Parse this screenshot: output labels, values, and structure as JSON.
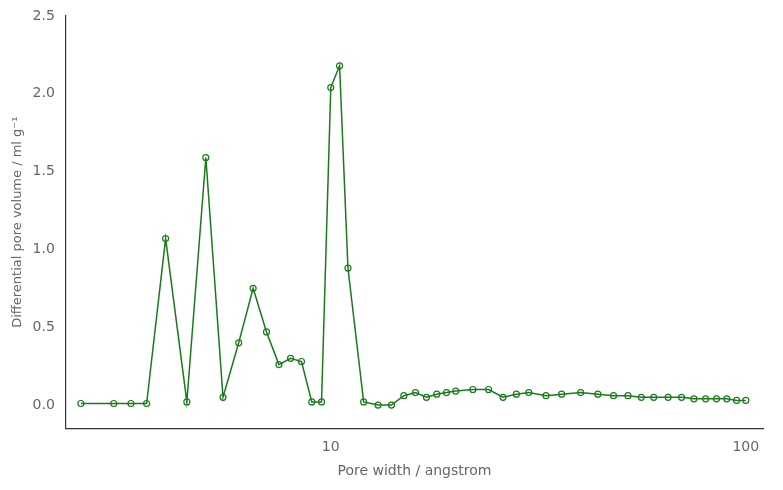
{
  "chart_data": {
    "type": "line",
    "x": [
      2.5,
      3.0,
      3.3,
      3.6,
      4.0,
      4.5,
      5.0,
      5.5,
      6.0,
      6.5,
      7.0,
      7.5,
      8.0,
      8.5,
      9.0,
      9.5,
      10.0,
      10.5,
      11.0,
      12.0,
      13.0,
      14.0,
      15.0,
      16.0,
      17.0,
      18.0,
      19.0,
      20.0,
      22.0,
      24.0,
      26.0,
      28.0,
      30.0,
      33.0,
      36.0,
      40.0,
      44.0,
      48.0,
      52.0,
      56.0,
      60.0,
      65.0,
      70.0,
      75.0,
      80.0,
      85.0,
      90.0,
      95.0,
      100.0
    ],
    "values": [
      0.01,
      0.01,
      0.01,
      0.01,
      1.07,
      0.02,
      1.59,
      0.05,
      0.4,
      0.75,
      0.47,
      0.26,
      0.3,
      0.28,
      0.02,
      0.02,
      2.04,
      2.18,
      0.88,
      0.02,
      0.0,
      0.0,
      0.06,
      0.08,
      0.05,
      0.07,
      0.08,
      0.09,
      0.1,
      0.1,
      0.05,
      0.07,
      0.08,
      0.06,
      0.07,
      0.08,
      0.07,
      0.06,
      0.06,
      0.05,
      0.05,
      0.05,
      0.05,
      0.04,
      0.04,
      0.04,
      0.04,
      0.03,
      0.03
    ],
    "color": "#1a7a1a",
    "marker": "circle",
    "xlabel": "Pore width / angstrom",
    "ylabel": "Differential pore volume / ml g⁻¹",
    "log": "x",
    "xlim": [
      2.3,
      110
    ],
    "xticks": [
      10,
      100
    ],
    "ylim": [
      -0.15,
      2.5
    ],
    "yticks": [
      {
        "value": 0,
        "label": "0.0"
      },
      0.5,
      {
        "value": 1,
        "label": "1.0"
      },
      1.5,
      {
        "value": 2,
        "label": "2.0"
      },
      2.5
    ],
    "grid": false
  }
}
